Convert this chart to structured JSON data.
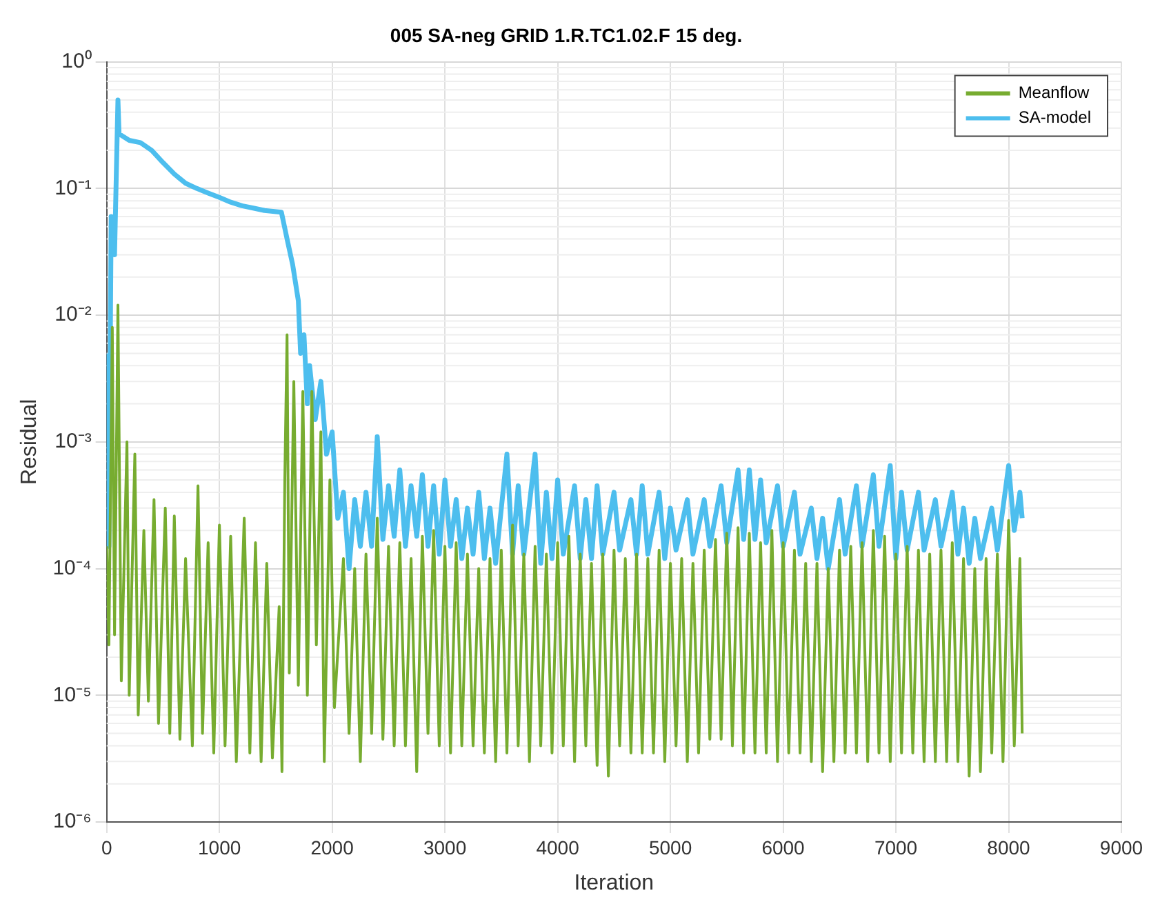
{
  "chart_data": {
    "type": "line",
    "title": "005 SA-neg GRID 1.R.TC1.02.F 15 deg.",
    "xlabel": "Iteration",
    "ylabel": "Residual",
    "log": "y",
    "grid": true,
    "legend": "top right",
    "marker": "none",
    "line_style": "solid",
    "xlim": [
      0,
      9000
    ],
    "xticks": [
      0,
      1000,
      2000,
      3000,
      4000,
      5000,
      6000,
      7000,
      8000,
      9000
    ],
    "ylim": [
      1e-06,
      1
    ],
    "yticks": [
      {
        "value": 1e-06,
        "label": "10⁻⁶"
      },
      {
        "value": 1e-05,
        "label": "10⁻⁵"
      },
      {
        "value": 0.0001,
        "label": "10⁻⁴"
      },
      {
        "value": 0.001,
        "label": "10⁻³"
      },
      {
        "value": 0.01,
        "label": "10⁻²"
      },
      {
        "value": 0.1,
        "label": "10⁻¹"
      },
      {
        "value": 1,
        "label": "10⁰"
      }
    ],
    "series": [
      {
        "name": "SA-model",
        "color": "#4dbeee",
        "x": [
          0,
          20,
          40,
          70,
          100,
          110,
          200,
          300,
          400,
          500,
          600,
          700,
          800,
          900,
          1000,
          1100,
          1200,
          1300,
          1400,
          1550,
          1600,
          1650,
          1700,
          1720,
          1750,
          1780,
          1800,
          1850,
          1900,
          1950,
          2000,
          2050,
          2100,
          2150,
          2200,
          2250,
          2300,
          2350,
          2400,
          2450,
          2500,
          2550,
          2600,
          2650,
          2700,
          2750,
          2800,
          2850,
          2900,
          2950,
          3000,
          3050,
          3100,
          3150,
          3200,
          3250,
          3300,
          3350,
          3400,
          3450,
          3550,
          3600,
          3650,
          3700,
          3800,
          3850,
          3900,
          3950,
          4000,
          4050,
          4150,
          4200,
          4250,
          4300,
          4350,
          4400,
          4500,
          4550,
          4650,
          4700,
          4750,
          4800,
          4900,
          4950,
          5000,
          5050,
          5150,
          5200,
          5300,
          5350,
          5450,
          5500,
          5600,
          5650,
          5700,
          5750,
          5800,
          5850,
          5950,
          6000,
          6100,
          6150,
          6250,
          6300,
          6350,
          6400,
          6500,
          6550,
          6650,
          6700,
          6800,
          6850,
          6950,
          7000,
          7050,
          7100,
          7200,
          7250,
          7350,
          7400,
          7500,
          7550,
          7600,
          7650,
          7700,
          7750,
          7850,
          7900,
          8000,
          8050,
          8100,
          8120
        ],
        "values": [
          0.005,
          0.00015,
          0.06,
          0.03,
          0.5,
          0.27,
          0.24,
          0.23,
          0.2,
          0.16,
          0.13,
          0.11,
          0.1,
          0.092,
          0.085,
          0.078,
          0.073,
          0.07,
          0.067,
          0.065,
          0.04,
          0.025,
          0.013,
          0.005,
          0.007,
          0.002,
          0.004,
          0.0015,
          0.003,
          0.0008,
          0.0012,
          0.00025,
          0.0004,
          0.0001,
          0.00035,
          0.00015,
          0.0004,
          0.00015,
          0.0011,
          0.00017,
          0.00045,
          0.00018,
          0.0006,
          0.00015,
          0.00045,
          0.00018,
          0.00055,
          0.00015,
          0.00045,
          0.00013,
          0.0005,
          0.00015,
          0.00035,
          0.00012,
          0.0003,
          0.00013,
          0.0004,
          0.00012,
          0.0003,
          0.00011,
          0.0008,
          0.00013,
          0.00045,
          0.00013,
          0.0008,
          0.00011,
          0.0004,
          0.00012,
          0.0005,
          0.00013,
          0.00045,
          0.00012,
          0.00035,
          0.00012,
          0.00045,
          0.00013,
          0.0004,
          0.00014,
          0.00035,
          0.00013,
          0.00045,
          0.00013,
          0.0004,
          0.00012,
          0.0003,
          0.00014,
          0.00035,
          0.00013,
          0.00035,
          0.00015,
          0.00045,
          0.00016,
          0.0006,
          0.00017,
          0.0006,
          0.00017,
          0.0005,
          0.00016,
          0.00045,
          0.00015,
          0.0004,
          0.00013,
          0.0003,
          0.00012,
          0.00025,
          0.0001,
          0.00035,
          0.00013,
          0.00045,
          0.00015,
          0.00055,
          0.00015,
          0.00065,
          0.00012,
          0.0004,
          0.00014,
          0.0004,
          0.00014,
          0.00035,
          0.00015,
          0.0004,
          0.00013,
          0.0003,
          0.00011,
          0.00025,
          0.00012,
          0.0003,
          0.00014,
          0.00065,
          0.0002,
          0.0004,
          0.00025
        ]
      },
      {
        "name": "Meanflow",
        "color": "#77ac30",
        "x": [
          0,
          20,
          50,
          70,
          100,
          130,
          180,
          200,
          250,
          280,
          330,
          370,
          420,
          460,
          520,
          560,
          600,
          650,
          700,
          760,
          810,
          850,
          900,
          950,
          1000,
          1050,
          1100,
          1150,
          1220,
          1270,
          1320,
          1370,
          1420,
          1470,
          1530,
          1555,
          1580,
          1600,
          1620,
          1660,
          1700,
          1740,
          1780,
          1820,
          1860,
          1900,
          1930,
          1980,
          2020,
          2100,
          2150,
          2200,
          2250,
          2300,
          2350,
          2400,
          2450,
          2500,
          2550,
          2600,
          2650,
          2700,
          2750,
          2800,
          2850,
          2900,
          2950,
          3000,
          3050,
          3100,
          3150,
          3200,
          3250,
          3300,
          3350,
          3400,
          3450,
          3500,
          3550,
          3600,
          3650,
          3700,
          3750,
          3800,
          3850,
          3900,
          3950,
          4000,
          4050,
          4100,
          4150,
          4200,
          4250,
          4300,
          4350,
          4400,
          4450,
          4500,
          4550,
          4600,
          4650,
          4700,
          4750,
          4800,
          4850,
          4900,
          4950,
          5000,
          5050,
          5100,
          5150,
          5200,
          5250,
          5300,
          5350,
          5400,
          5450,
          5500,
          5550,
          5600,
          5650,
          5700,
          5750,
          5800,
          5850,
          5900,
          5950,
          6000,
          6050,
          6100,
          6150,
          6200,
          6250,
          6300,
          6350,
          6400,
          6450,
          6500,
          6550,
          6600,
          6650,
          6700,
          6750,
          6800,
          6850,
          6900,
          6950,
          7000,
          7050,
          7100,
          7150,
          7200,
          7250,
          7300,
          7350,
          7400,
          7450,
          7500,
          7550,
          7600,
          7650,
          7700,
          7750,
          7800,
          7850,
          7900,
          7950,
          8000,
          8050,
          8100,
          8120
        ],
        "values": [
          0.00015,
          2.5e-05,
          0.008,
          3e-05,
          0.012,
          1.3e-05,
          0.001,
          1e-05,
          0.0008,
          7e-06,
          0.0002,
          9e-06,
          0.00035,
          6e-06,
          0.0003,
          5e-06,
          0.00026,
          4.5e-06,
          0.00012,
          4e-06,
          0.00045,
          5e-06,
          0.00016,
          3.5e-06,
          0.00022,
          4e-06,
          0.00018,
          3e-06,
          0.00025,
          3.5e-06,
          0.00016,
          3e-06,
          0.00011,
          3.2e-06,
          5e-05,
          2.5e-06,
          0.0005,
          0.007,
          1.5e-05,
          0.003,
          1.2e-05,
          0.0025,
          1e-05,
          0.0025,
          2.5e-05,
          0.0012,
          3e-06,
          0.0005,
          8e-06,
          0.00012,
          5e-06,
          0.0001,
          3e-06,
          0.00013,
          5e-06,
          0.00025,
          4.5e-06,
          0.00015,
          4e-06,
          0.00016,
          4e-06,
          0.00012,
          2.5e-06,
          0.00018,
          5e-06,
          0.0002,
          4e-06,
          0.00015,
          3.5e-06,
          0.00016,
          4e-06,
          0.00013,
          4e-06,
          0.0001,
          3.5e-06,
          0.00012,
          3e-06,
          0.00014,
          3.5e-06,
          0.00022,
          4e-06,
          0.00013,
          3e-06,
          0.00015,
          4e-06,
          0.00013,
          3.5e-06,
          0.00016,
          4e-06,
          0.00018,
          3e-06,
          0.00013,
          4e-06,
          0.00011,
          2.8e-06,
          0.00013,
          2.3e-06,
          0.00014,
          4e-06,
          0.00012,
          3.5e-06,
          0.00013,
          3.5e-06,
          0.00012,
          3.5e-06,
          0.00014,
          3e-06,
          0.00011,
          4e-06,
          0.00012,
          3e-06,
          0.00011,
          3.5e-06,
          0.00014,
          4.5e-06,
          0.00017,
          4.5e-06,
          0.00019,
          4e-06,
          0.00021,
          3.5e-06,
          0.00019,
          3.5e-06,
          0.00016,
          3.5e-06,
          0.0002,
          3e-06,
          0.00016,
          3.5e-06,
          0.00014,
          3.5e-06,
          0.00011,
          3e-06,
          0.00011,
          2.5e-06,
          0.0001,
          3e-06,
          0.00014,
          3.5e-06,
          0.00015,
          3.5e-06,
          0.00016,
          3e-06,
          0.0002,
          3.5e-06,
          0.00018,
          3e-06,
          0.00013,
          3.5e-06,
          0.00015,
          3.5e-06,
          0.00014,
          3e-06,
          0.00013,
          3e-06,
          0.00014,
          3e-06,
          0.00016,
          3e-06,
          0.00012,
          2.3e-06,
          0.0001,
          2.5e-06,
          0.00012,
          3.5e-06,
          0.00013,
          3e-06,
          0.00024,
          4e-06,
          0.00012,
          5e-06
        ]
      }
    ]
  }
}
